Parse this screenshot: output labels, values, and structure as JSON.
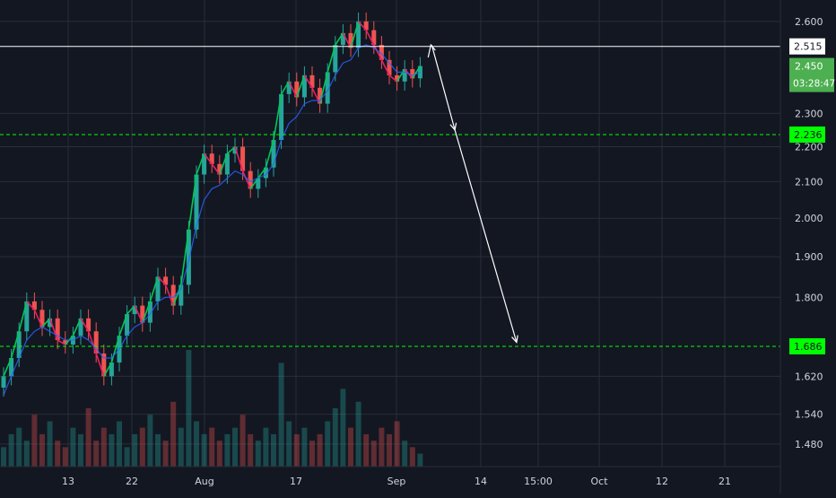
{
  "chart_data": {
    "type": "candlestick",
    "title": "",
    "xlabel": "",
    "ylabel": "",
    "x_ticks": [
      "13",
      "22",
      "Aug",
      "17",
      "Sep",
      "14",
      "15:00",
      "Oct",
      "12",
      "21"
    ],
    "y_ticks": [
      "2.600",
      "2.300",
      "2.200",
      "2.100",
      "2.000",
      "1.900",
      "1.800",
      "1.620",
      "1.540",
      "1.480"
    ],
    "ylim": [
      1.45,
      2.65
    ],
    "scale": "log",
    "grid": true,
    "price_series": [
      1.62,
      1.66,
      1.72,
      1.79,
      1.77,
      1.73,
      1.75,
      1.7,
      1.69,
      1.71,
      1.75,
      1.72,
      1.67,
      1.62,
      1.65,
      1.71,
      1.76,
      1.78,
      1.74,
      1.79,
      1.85,
      1.83,
      1.78,
      1.83,
      1.97,
      2.12,
      2.18,
      2.15,
      2.12,
      2.18,
      2.2,
      2.13,
      2.08,
      2.11,
      2.14,
      2.22,
      2.36,
      2.4,
      2.35,
      2.42,
      2.38,
      2.33,
      2.43,
      2.52,
      2.56,
      2.51,
      2.6,
      2.57,
      2.52,
      2.47,
      2.42,
      2.4,
      2.44,
      2.41,
      2.45
    ],
    "moving_average": [
      1.58,
      1.62,
      1.66,
      1.7,
      1.72,
      1.73,
      1.72,
      1.71,
      1.7,
      1.7,
      1.71,
      1.7,
      1.68,
      1.66,
      1.66,
      1.68,
      1.71,
      1.73,
      1.74,
      1.76,
      1.79,
      1.8,
      1.8,
      1.82,
      1.89,
      1.98,
      2.05,
      2.08,
      2.09,
      2.11,
      2.13,
      2.12,
      2.1,
      2.11,
      2.12,
      2.15,
      2.22,
      2.27,
      2.29,
      2.33,
      2.34,
      2.34,
      2.37,
      2.42,
      2.46,
      2.47,
      2.51,
      2.52,
      2.51,
      2.49,
      2.46,
      2.43,
      2.43,
      2.42,
      2.43
    ],
    "volume_series": [
      3,
      5,
      6,
      4,
      8,
      5,
      7,
      4,
      3,
      6,
      5,
      9,
      4,
      6,
      5,
      7,
      3,
      5,
      6,
      8,
      5,
      4,
      10,
      6,
      18,
      7,
      5,
      6,
      4,
      5,
      6,
      8,
      5,
      4,
      6,
      5,
      16,
      7,
      5,
      6,
      4,
      5,
      7,
      9,
      12,
      6,
      10,
      5,
      4,
      6,
      5,
      7,
      4,
      3,
      2
    ],
    "horizontal_lines": [
      {
        "value": 2.515,
        "label": "2.515",
        "style": "solid",
        "color": "#ffffff"
      },
      {
        "value": 2.236,
        "label": "2.236",
        "style": "dashed",
        "color": "#00ff00"
      },
      {
        "value": 1.686,
        "label": "1.686",
        "style": "dashed",
        "color": "#00ff00"
      }
    ],
    "current_price": {
      "value": 2.45,
      "label": "2.450",
      "countdown": "03:28:47"
    },
    "projection_arrow": [
      {
        "x_index": 55.5,
        "y": 2.52
      },
      {
        "x_index": 58.5,
        "y": 2.25
      },
      {
        "x_index": 66.5,
        "y": 1.695
      }
    ],
    "colors": {
      "background": "#131722",
      "up": "#26a69a",
      "down": "#ef5350",
      "line_up": "#00c853",
      "line_down": "#e91e63",
      "ma": "#2962ff",
      "grid": "#2a2e39",
      "text": "#d1d4dc",
      "label_green": "#00ff00",
      "label_dark_green": "#4caf50"
    }
  }
}
